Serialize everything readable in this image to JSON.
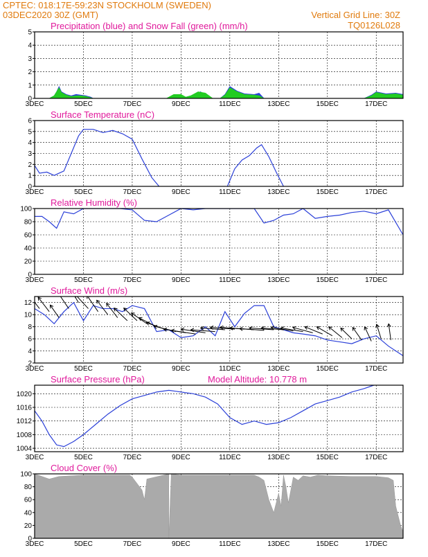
{
  "header": {
    "line1": "CPTEC:   018:17E-59:23N   STOCKHOLM (SWEDEN)",
    "line2_left": "03DEC2020 30Z (GMT)",
    "line2_right": "Vertical Grid Line: 30Z",
    "line3_right": "TQ0126L028"
  },
  "colors": {
    "header": "#e07a0c",
    "title": "#e0199b",
    "series": "#2a3fd8",
    "snow": "#22cc22",
    "cloud": "#aaaaaa"
  },
  "x_axis": {
    "tick_days": [
      3,
      5,
      7,
      9,
      11,
      13,
      15,
      17
    ],
    "tick_labels": [
      "3DEC",
      "5DEC",
      "7DEC",
      "9DEC",
      "11DEC",
      "13DEC",
      "15DEC",
      "17DEC"
    ],
    "xlim": [
      3,
      18.1
    ]
  },
  "chart_data": [
    {
      "id": "precip",
      "type": "area",
      "title": "Precipitation (blue) and Snow Fall (green) (mm/h)",
      "ylim": [
        0,
        5
      ],
      "yticks": [
        0,
        1,
        2,
        3,
        4,
        5
      ],
      "series": [
        {
          "name": "Precipitation",
          "x": [
            3.6,
            3.8,
            3.9,
            4.0,
            4.1,
            4.3,
            4.5,
            4.7,
            4.9,
            5.1,
            5.3,
            5.4,
            9.0,
            9.2,
            9.4,
            9.6,
            9.8,
            10.0,
            10.2,
            10.6,
            10.8,
            11.0,
            11.3,
            11.6,
            12.0,
            12.2,
            12.4,
            16.5,
            16.8,
            17.0,
            17.4,
            17.8,
            18.1
          ],
          "y": [
            0,
            0.2,
            0.5,
            0.9,
            0.5,
            0.3,
            0.2,
            0.3,
            0.25,
            0.2,
            0.1,
            0,
            0,
            0.1,
            0.2,
            0.35,
            0.5,
            0.25,
            0,
            0,
            0.3,
            0.9,
            0.55,
            0.35,
            0.3,
            0.4,
            0,
            0,
            0.25,
            0.5,
            0.35,
            0.4,
            0.3
          ]
        },
        {
          "name": "Snow Fall",
          "x": [
            3.6,
            3.8,
            3.9,
            4.0,
            4.1,
            4.3,
            4.5,
            4.7,
            4.9,
            5.1,
            5.3,
            5.4,
            8.4,
            8.7,
            9.0,
            9.2,
            9.4,
            9.7,
            10.0,
            10.3,
            10.6,
            10.8,
            11.0,
            11.3,
            11.6,
            12.0,
            12.2,
            12.4,
            16.5,
            16.8,
            17.0,
            17.4,
            17.8,
            18.1
          ],
          "y": [
            0,
            0.2,
            0.5,
            0.8,
            0.45,
            0.25,
            0.15,
            0.2,
            0.2,
            0.15,
            0.05,
            0,
            0,
            0.3,
            0.3,
            0.1,
            0.2,
            0.5,
            0.4,
            0,
            0,
            0.25,
            0.8,
            0.5,
            0.3,
            0.25,
            0.2,
            0,
            0,
            0.2,
            0.45,
            0.3,
            0.35,
            0.25
          ]
        }
      ]
    },
    {
      "id": "temp",
      "type": "line",
      "title": "Surface Temperature (nC)",
      "ylim": [
        0,
        6
      ],
      "yticks": [
        0,
        1,
        2,
        3,
        4,
        5,
        6
      ],
      "series": [
        {
          "name": "Temperature",
          "segments": [
            {
              "x": [
                3.0,
                3.2,
                3.5,
                3.8,
                4.2,
                4.5,
                4.8,
                5.0,
                5.4,
                5.8,
                6.2,
                6.6,
                7.0,
                7.4,
                7.8,
                8.1
              ],
              "y": [
                1.9,
                1.2,
                1.3,
                1.0,
                1.4,
                3.0,
                4.6,
                5.2,
                5.2,
                4.9,
                5.1,
                4.8,
                4.3,
                2.5,
                0.8,
                0
              ]
            },
            {
              "x": [
                10.9,
                11.2,
                11.5,
                11.8,
                12.1,
                12.3,
                12.6,
                12.9,
                13.2
              ],
              "y": [
                0,
                1.6,
                2.4,
                2.8,
                3.5,
                3.8,
                2.7,
                1.3,
                0
              ]
            }
          ]
        }
      ]
    },
    {
      "id": "rh",
      "type": "line",
      "title": "Relative Humidity (%)",
      "ylim": [
        0,
        100
      ],
      "yticks": [
        0,
        20,
        40,
        60,
        80,
        100
      ],
      "series": [
        {
          "name": "Humidity",
          "x": [
            3.0,
            3.3,
            3.6,
            3.9,
            4.2,
            4.6,
            5.0,
            5.5,
            6.0,
            6.5,
            7.0,
            7.5,
            8.0,
            8.5,
            9.0,
            9.5,
            10.0,
            10.5,
            11.0,
            11.5,
            12.0,
            12.4,
            12.8,
            13.2,
            13.6,
            14.0,
            14.5,
            15.0,
            15.5,
            16.0,
            16.5,
            17.0,
            17.5,
            18.1
          ],
          "y": [
            88,
            88,
            80,
            70,
            95,
            92,
            100,
            100,
            100,
            100,
            98,
            82,
            80,
            90,
            100,
            98,
            100,
            100,
            100,
            100,
            100,
            78,
            82,
            90,
            92,
            100,
            85,
            88,
            90,
            94,
            96,
            92,
            98,
            60
          ]
        }
      ]
    },
    {
      "id": "wind",
      "type": "line",
      "title": "Surface Wind (m/s)",
      "ylim": [
        2,
        13
      ],
      "yticks": [
        2,
        4,
        6,
        8,
        10,
        12
      ],
      "series": [
        {
          "name": "Wind Speed",
          "x": [
            3.0,
            3.4,
            3.8,
            4.2,
            4.6,
            5.0,
            5.4,
            5.8,
            6.2,
            6.6,
            7.0,
            7.5,
            8.0,
            8.5,
            9.0,
            9.5,
            10.0,
            10.4,
            10.8,
            11.2,
            11.6,
            12.0,
            12.4,
            12.8,
            13.2,
            13.6,
            14.0,
            14.5,
            15.0,
            15.5,
            16.0,
            16.5,
            17.0,
            17.5,
            18.1
          ],
          "y": [
            11,
            10,
            8.5,
            10.5,
            12,
            9,
            11.5,
            11,
            11,
            10.5,
            11.5,
            11,
            7.2,
            7.5,
            6.2,
            6.5,
            8.0,
            6.5,
            10.5,
            8,
            10.2,
            11.5,
            11.5,
            8,
            7.5,
            7.0,
            6.8,
            6.5,
            5.8,
            5.5,
            5.2,
            6,
            6.5,
            4.8,
            3.2
          ]
        }
      ],
      "arrows": {
        "x": [
          3.2,
          3.6,
          4.0,
          4.4,
          4.8,
          5.2,
          5.6,
          6.0,
          6.4,
          6.8,
          7.2,
          7.6,
          8.0,
          8.4,
          8.8,
          9.2,
          9.6,
          10.0,
          10.4,
          10.8,
          11.2,
          11.6,
          12.0,
          12.4,
          12.8,
          13.2,
          13.6,
          14.0,
          14.4,
          14.8,
          15.2,
          15.6,
          16.0,
          16.4,
          16.8,
          17.2,
          17.6
        ],
        "y": [
          11,
          10.5,
          9.5,
          11,
          12,
          11,
          10.5,
          10,
          9.5,
          9,
          9,
          8.5,
          8,
          7.5,
          7.2,
          7,
          6.8,
          7,
          7.2,
          7.5,
          7.6,
          7.6,
          7.5,
          7.4,
          7.5,
          7.5,
          7.3,
          7.2,
          7.0,
          6.8,
          6.5,
          6.2,
          6,
          5.8,
          5.6,
          6,
          5.8
        ],
        "u": [
          -5,
          -5,
          -4,
          -5,
          -5,
          -6,
          -5,
          -5,
          -5,
          -6,
          -6,
          -7,
          -8,
          -9,
          -10,
          -10,
          -11,
          -11,
          -11,
          -11,
          -11,
          -11,
          -11,
          -11,
          -11,
          -10,
          -10,
          -10,
          -9,
          -8,
          -7,
          -6,
          -5,
          -4,
          -3,
          -2,
          -1
        ],
        "v": [
          8,
          8,
          7,
          9,
          10,
          8,
          9,
          8,
          8,
          7,
          7,
          6,
          5,
          4,
          3,
          2,
          2,
          2,
          1,
          1,
          1,
          1,
          1,
          1,
          1,
          1,
          2,
          2,
          3,
          4,
          5,
          6,
          6,
          7,
          8,
          8,
          9
        ]
      }
    },
    {
      "id": "pressure",
      "type": "line",
      "title": "Surface Pressure (hPa)",
      "subtitle": "Model Altitude: 10.778  m",
      "ylim": [
        1003,
        1022.5
      ],
      "yticks": [
        1004,
        1008,
        1012,
        1016,
        1020
      ],
      "series": [
        {
          "name": "Pressure",
          "x": [
            3.0,
            3.3,
            3.6,
            3.9,
            4.2,
            4.6,
            5.0,
            5.5,
            6.0,
            6.5,
            7.0,
            7.5,
            8.0,
            8.5,
            9.0,
            9.5,
            10.0,
            10.5,
            11.0,
            11.5,
            12.0,
            12.5,
            13.0,
            13.5,
            14.0,
            14.5,
            15.0,
            15.5,
            16.0,
            16.5,
            16.9
          ],
          "y": [
            1015,
            1012,
            1008,
            1005,
            1004.5,
            1006,
            1008,
            1011,
            1014,
            1016.5,
            1018.5,
            1019.5,
            1020.5,
            1021,
            1020.5,
            1020,
            1019,
            1017,
            1013,
            1011,
            1012,
            1011,
            1011.5,
            1013,
            1015,
            1017,
            1018,
            1019,
            1020.5,
            1021.5,
            1022.5
          ]
        }
      ]
    },
    {
      "id": "cloud",
      "type": "area",
      "title": "Cloud Cover (%)",
      "ylim": [
        0,
        100
      ],
      "yticks": [
        0,
        20,
        40,
        60,
        80,
        100
      ],
      "series": [
        {
          "name": "Cloud Cover",
          "x": [
            3.0,
            3.3,
            3.6,
            4.0,
            5.0,
            6.0,
            6.9,
            7.0,
            7.1,
            7.4,
            7.5,
            7.6,
            8.5,
            8.5,
            8.6,
            9.0,
            10.0,
            11.0,
            12.0,
            12.2,
            12.4,
            12.6,
            12.8,
            12.9,
            13.0,
            13.1,
            13.2,
            13.3,
            13.4,
            13.5,
            13.6,
            13.8,
            14.0,
            14.3,
            14.6,
            15.0,
            16.0,
            17.0,
            17.5,
            17.7,
            17.8,
            18.0,
            18.1
          ],
          "y": [
            100,
            96,
            92,
            96,
            98,
            98,
            98,
            95,
            90,
            75,
            60,
            92,
            100,
            0,
            100,
            98,
            98,
            98,
            98,
            95,
            90,
            60,
            40,
            55,
            70,
            50,
            98,
            80,
            55,
            75,
            95,
            90,
            97,
            95,
            98,
            97,
            96,
            96,
            94,
            90,
            50,
            20,
            10
          ]
        }
      ]
    }
  ]
}
